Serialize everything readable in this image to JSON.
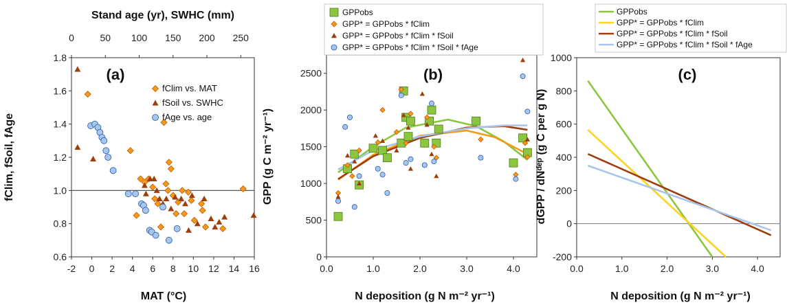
{
  "chart_data": [
    {
      "type": "scatter",
      "panel_label": "(a)",
      "xlabel": "MAT (°C)",
      "x2label": "Stand age (yr), SWHC (mm)",
      "ylabel": "fClim, fSoil, fAge",
      "xlim": [
        -2,
        16
      ],
      "x2lim": [
        0,
        270
      ],
      "ylim": [
        0.6,
        1.8
      ],
      "xticks": [
        "-2",
        "0",
        "2",
        "4",
        "6",
        "8",
        "10",
        "12",
        "14",
        "16"
      ],
      "x2ticks": [
        "0",
        "50",
        "100",
        "150",
        "200",
        "250"
      ],
      "yticks": [
        "0.6",
        "0.8",
        "1.0",
        "1.2",
        "1.4",
        "1.6",
        "1.8"
      ],
      "reference_line": 1.0,
      "grid": false,
      "legend_position": "top-right",
      "colors": {
        "fClim": "#f59b1c",
        "fSoil": "#9e3d0d",
        "fAge": "#a6c6ee"
      },
      "series": [
        {
          "name": "fClim vs. MAT",
          "axis": "bottom",
          "marker": "diamond",
          "points": [
            [
              -0.4,
              1.58
            ],
            [
              3.8,
              1.24
            ],
            [
              4.4,
              0.85
            ],
            [
              4.8,
              1.07
            ],
            [
              5.2,
              1.05
            ],
            [
              5.6,
              1.07
            ],
            [
              6.0,
              1.02
            ],
            [
              6.2,
              0.95
            ],
            [
              6.5,
              0.92
            ],
            [
              6.8,
              0.78
            ],
            [
              7.1,
              1.41
            ],
            [
              7.3,
              1.04
            ],
            [
              7.5,
              1.0
            ],
            [
              7.6,
              1.17
            ],
            [
              7.8,
              1.13
            ],
            [
              8.0,
              0.97
            ],
            [
              8.3,
              0.86
            ],
            [
              8.5,
              0.93
            ],
            [
              8.9,
              1.0
            ],
            [
              9.1,
              0.86
            ],
            [
              9.5,
              0.99
            ],
            [
              9.8,
              0.94
            ],
            [
              10.1,
              0.82
            ],
            [
              10.8,
              0.92
            ],
            [
              10.9,
              0.88
            ],
            [
              11.2,
              0.78
            ],
            [
              12.9,
              0.77
            ],
            [
              14.9,
              1.01
            ]
          ]
        },
        {
          "name": "fSoil vs. SWHC",
          "axis": "top",
          "marker": "triangle",
          "points": [
            [
              9,
              1.73
            ],
            [
              9,
              1.26
            ],
            [
              32,
              1.19
            ],
            [
              108,
              1.03
            ],
            [
              110,
              0.98
            ],
            [
              116,
              1.07
            ],
            [
              122,
              1.07
            ],
            [
              126,
              1.0
            ],
            [
              130,
              0.95
            ],
            [
              135,
              0.92
            ],
            [
              140,
              0.95
            ],
            [
              147,
              0.89
            ],
            [
              153,
              0.96
            ],
            [
              162,
              0.95
            ],
            [
              168,
              0.92
            ],
            [
              173,
              0.76
            ],
            [
              178,
              0.97
            ],
            [
              186,
              0.8
            ],
            [
              196,
              0.95
            ],
            [
              206,
              0.83
            ],
            [
              212,
              0.78
            ],
            [
              218,
              0.81
            ],
            [
              226,
              0.84
            ],
            [
              269,
              0.85
            ]
          ]
        },
        {
          "name": "fAge vs. age",
          "axis": "bottom",
          "marker": "circle",
          "points": [
            [
              -0.1,
              1.39
            ],
            [
              0.3,
              1.4
            ],
            [
              0.6,
              1.38
            ],
            [
              0.8,
              1.35
            ],
            [
              1.0,
              1.32
            ],
            [
              1.2,
              1.3
            ],
            [
              1.4,
              1.24
            ],
            [
              1.6,
              1.2
            ],
            [
              2.1,
              1.12
            ],
            [
              3.6,
              0.98
            ],
            [
              4.3,
              0.98
            ],
            [
              4.9,
              0.92
            ],
            [
              5.1,
              0.91
            ],
            [
              5.3,
              0.88
            ],
            [
              5.7,
              0.76
            ],
            [
              5.9,
              0.75
            ],
            [
              6.3,
              0.73
            ],
            [
              7.0,
              0.9
            ],
            [
              7.6,
              0.7
            ],
            [
              8.4,
              0.77
            ]
          ]
        }
      ]
    },
    {
      "type": "scatter",
      "panel_label": "(b)",
      "xlabel": "N deposition (g N m⁻² yr⁻¹)",
      "ylabel": "GPP (g C m⁻² yr⁻¹)",
      "xlim": [
        0,
        4.5
      ],
      "ylim": [
        0,
        2750
      ],
      "xticks": [
        "0.0",
        "1.0",
        "2.0",
        "3.0",
        "4.0"
      ],
      "yticks": [
        "0",
        "500",
        "1000",
        "1500",
        "2000",
        "2500"
      ],
      "grid": false,
      "legend_position": "top",
      "series": [
        {
          "name": "GPPobs",
          "marker": "square",
          "color": "#8cc63f",
          "points": [
            [
              0.25,
              550
            ],
            [
              0.45,
              1200
            ],
            [
              0.6,
              1400
            ],
            [
              0.7,
              980
            ],
            [
              1.0,
              1480
            ],
            [
              1.2,
              1450
            ],
            [
              1.3,
              1350
            ],
            [
              1.6,
              1550
            ],
            [
              1.65,
              2260
            ],
            [
              1.7,
              1900
            ],
            [
              1.75,
              1640
            ],
            [
              1.8,
              1850
            ],
            [
              2.1,
              1550
            ],
            [
              2.2,
              1850
            ],
            [
              2.25,
              2000
            ],
            [
              2.35,
              1550
            ],
            [
              2.4,
              1740
            ],
            [
              3.2,
              1850
            ],
            [
              4.0,
              1280
            ],
            [
              4.2,
              1620
            ],
            [
              4.3,
              1420
            ]
          ],
          "fit": [
            [
              0.25,
              1150
            ],
            [
              1.0,
              1500
            ],
            [
              1.7,
              1760
            ],
            [
              2.6,
              1870
            ],
            [
              3.2,
              1780
            ],
            [
              3.8,
              1570
            ],
            [
              4.3,
              1320
            ]
          ]
        },
        {
          "name": "GPP* = GPPobs * fClim",
          "marker": "diamond",
          "color": "#f59b1c",
          "points": [
            [
              0.25,
              870
            ],
            [
              0.45,
              1250
            ],
            [
              0.55,
              1100
            ],
            [
              0.7,
              1450
            ],
            [
              1.1,
              1560
            ],
            [
              1.2,
              2000
            ],
            [
              1.5,
              1700
            ],
            [
              1.6,
              2280
            ],
            [
              1.7,
              1550
            ],
            [
              1.8,
              1950
            ],
            [
              2.15,
              1900
            ],
            [
              2.3,
              1500
            ],
            [
              2.35,
              1350
            ],
            [
              3.3,
              1600
            ],
            [
              4.05,
              1120
            ],
            [
              4.25,
              1550
            ],
            [
              4.3,
              1360
            ]
          ],
          "fit": [
            [
              0.25,
              1050
            ],
            [
              1.0,
              1390
            ],
            [
              2.0,
              1650
            ],
            [
              3.0,
              1720
            ],
            [
              3.6,
              1630
            ],
            [
              4.3,
              1400
            ]
          ]
        },
        {
          "name": "GPP* = GPPobs * fClim * fSoil",
          "marker": "triangle",
          "color": "#9e3d0d",
          "points": [
            [
              0.25,
              820
            ],
            [
              0.45,
              1380
            ],
            [
              0.6,
              1300
            ],
            [
              0.7,
              1000
            ],
            [
              1.05,
              1650
            ],
            [
              1.2,
              1580
            ],
            [
              1.5,
              1450
            ],
            [
              1.65,
              1930
            ],
            [
              1.75,
              1760
            ],
            [
              1.8,
              1200
            ],
            [
              2.05,
              2220
            ],
            [
              2.15,
              1800
            ],
            [
              2.25,
              1400
            ],
            [
              2.35,
              1100
            ],
            [
              3.3,
              1350
            ],
            [
              4.2,
              2680
            ],
            [
              4.3,
              1600
            ]
          ],
          "fit": [
            [
              0.25,
              1060
            ],
            [
              1.0,
              1370
            ],
            [
              2.0,
              1620
            ],
            [
              3.0,
              1760
            ],
            [
              3.8,
              1780
            ],
            [
              4.3,
              1730
            ]
          ]
        },
        {
          "name": "GPP* = GPPobs * fClim * fSoil * fAge",
          "marker": "circle",
          "color": "#a6c6ee",
          "points": [
            [
              0.25,
              760
            ],
            [
              0.4,
              1770
            ],
            [
              0.5,
              1900
            ],
            [
              0.6,
              680
            ],
            [
              0.7,
              1100
            ],
            [
              1.1,
              1200
            ],
            [
              1.2,
              1120
            ],
            [
              1.3,
              870
            ],
            [
              1.6,
              2200
            ],
            [
              1.7,
              1280
            ],
            [
              1.8,
              1330
            ],
            [
              2.1,
              1250
            ],
            [
              2.25,
              2090
            ],
            [
              2.3,
              1300
            ],
            [
              3.3,
              1350
            ],
            [
              4.05,
              1060
            ],
            [
              4.2,
              2460
            ],
            [
              4.3,
              1980
            ]
          ],
          "fit": [
            [
              0.25,
              1190
            ],
            [
              1.0,
              1450
            ],
            [
              2.0,
              1640
            ],
            [
              3.0,
              1750
            ],
            [
              3.8,
              1790
            ],
            [
              4.3,
              1790
            ]
          ]
        }
      ]
    },
    {
      "type": "line",
      "panel_label": "(c)",
      "xlabel": "N deposition (g N m⁻² yr⁻¹)",
      "ylabel": "dGPP / dNᵈᵉᵖ (g C  per g N)",
      "xlim": [
        0,
        4.5
      ],
      "ylim": [
        -200,
        1000
      ],
      "xticks": [
        "0.0",
        "1.0",
        "2.0",
        "3.0",
        "4.0"
      ],
      "yticks": [
        "-200",
        "0",
        "200",
        "400",
        "600",
        "800",
        "1000"
      ],
      "grid": false,
      "legend_position": "top",
      "series": [
        {
          "name": "GPPobs",
          "color": "#8cc63f",
          "points": [
            [
              0.25,
              860
            ],
            [
              3.0,
              -200
            ]
          ]
        },
        {
          "name": "GPP* = GPPobs * fClim",
          "color": "#ffd21f",
          "points": [
            [
              0.25,
              565
            ],
            [
              3.3,
              -200
            ]
          ]
        },
        {
          "name": "GPP* = GPPobs * fClim * fSoil",
          "color": "#9e3d0d",
          "points": [
            [
              0.25,
              420
            ],
            [
              4.3,
              -70
            ]
          ]
        },
        {
          "name": "GPP* = GPPobs * fClim * fSoil * fAge",
          "color": "#a6c6ee",
          "points": [
            [
              0.25,
              350
            ],
            [
              4.3,
              -40
            ]
          ]
        }
      ]
    }
  ]
}
